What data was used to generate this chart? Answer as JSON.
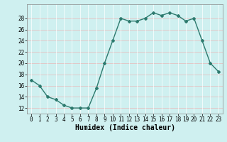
{
  "x": [
    0,
    1,
    2,
    3,
    4,
    5,
    6,
    7,
    8,
    9,
    10,
    11,
    12,
    13,
    14,
    15,
    16,
    17,
    18,
    19,
    20,
    21,
    22,
    23
  ],
  "y": [
    17,
    16,
    14,
    13.5,
    12.5,
    12,
    12,
    12,
    15.5,
    20,
    24,
    28,
    27.5,
    27.5,
    28,
    29,
    28.5,
    29,
    28.5,
    27.5,
    28,
    24,
    20,
    18.5
  ],
  "line_color": "#2d7a6e",
  "marker": "D",
  "marker_size": 2,
  "linewidth": 1.0,
  "bg_color": "#cff0f0",
  "grid_h_color": "#e8b8b8",
  "grid_v_color": "#ffffff",
  "xlabel": "Humidex (Indice chaleur)",
  "xlabel_fontsize": 7,
  "ylabel_ticks": [
    12,
    14,
    16,
    18,
    20,
    22,
    24,
    26,
    28
  ],
  "ylim": [
    11,
    30.5
  ],
  "xlim": [
    -0.5,
    23.5
  ],
  "tick_fontsize": 5.5
}
